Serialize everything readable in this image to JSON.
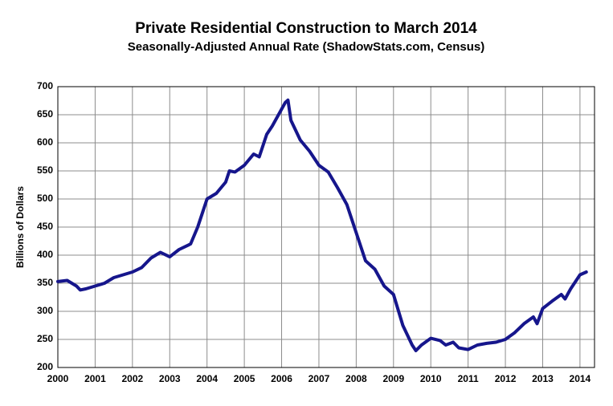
{
  "chart_data": {
    "type": "line",
    "title": "Private Residential Construction to March 2014",
    "subtitle": "Seasonally-Adjusted Annual Rate (ShadowStats.com, Census)",
    "y_label": "Billions of Dollars",
    "x": [
      2000,
      2000.25,
      2000.5,
      2000.6,
      2000.75,
      2001,
      2001.25,
      2001.5,
      2001.75,
      2002,
      2002.25,
      2002.5,
      2002.75,
      2003,
      2003.25,
      2003.5,
      2003.56,
      2003.75,
      2004,
      2004.25,
      2004.5,
      2004.6,
      2004.75,
      2005,
      2005.25,
      2005.4,
      2005.6,
      2005.75,
      2006,
      2006.1,
      2006.17,
      2006.25,
      2006.5,
      2006.75,
      2007,
      2007.25,
      2007.5,
      2007.75,
      2008,
      2008.25,
      2008.5,
      2008.75,
      2009,
      2009.25,
      2009.5,
      2009.6,
      2009.75,
      2010,
      2010.25,
      2010.4,
      2010.6,
      2010.75,
      2011,
      2011.25,
      2011.5,
      2011.75,
      2012,
      2012.25,
      2012.5,
      2012.75,
      2012.85,
      2013,
      2013.25,
      2013.5,
      2013.6,
      2013.75,
      2014,
      2014.17
    ],
    "series": [
      {
        "name": "Private Residential Construction",
        "color": "#16168c",
        "values": [
          353,
          355,
          345,
          338,
          340,
          345,
          350,
          360,
          365,
          370,
          378,
          395,
          405,
          397,
          410,
          418,
          420,
          450,
          500,
          510,
          530,
          550,
          548,
          560,
          580,
          575,
          615,
          630,
          660,
          672,
          676,
          640,
          605,
          585,
          560,
          548,
          520,
          490,
          440,
          390,
          375,
          345,
          330,
          275,
          240,
          230,
          240,
          252,
          248,
          240,
          245,
          235,
          232,
          240,
          243,
          245,
          250,
          262,
          278,
          290,
          278,
          305,
          318,
          330,
          322,
          340,
          365,
          370
        ]
      }
    ],
    "xlim": [
      2000,
      2014.39
    ],
    "xticks": [
      2000,
      2001,
      2002,
      2003,
      2004,
      2005,
      2006,
      2007,
      2008,
      2009,
      2010,
      2011,
      2012,
      2013,
      2014
    ],
    "ylim": [
      200,
      700
    ],
    "yticks": [
      200,
      250,
      300,
      350,
      400,
      450,
      500,
      550,
      600,
      650,
      700
    ],
    "grid": true
  }
}
